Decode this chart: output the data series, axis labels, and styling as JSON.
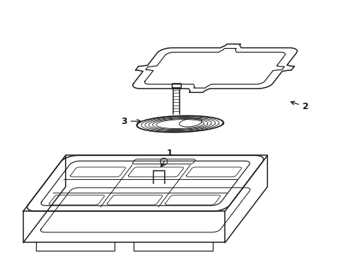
{
  "bg_color": "#ffffff",
  "line_color": "#1a1a1a",
  "line_width": 1.1,
  "fig_width": 4.89,
  "fig_height": 3.6,
  "dpi": 100
}
